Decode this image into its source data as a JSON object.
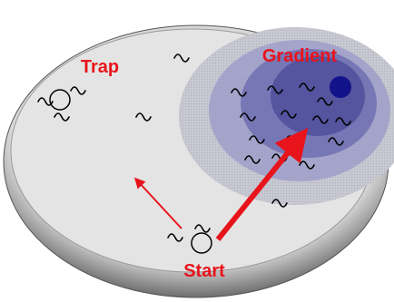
{
  "labels": {
    "trap": "Trap",
    "gradient": "Gradient",
    "start": "Start"
  }
}
